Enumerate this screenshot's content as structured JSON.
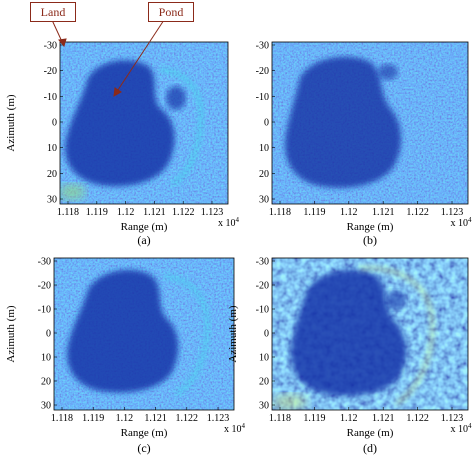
{
  "figure": {
    "panels": [
      {
        "id": "a",
        "caption": "(a)",
        "ylabel": "Azimuth (m)",
        "xlabel": "Range (m)",
        "y_ticks": [
          "-30",
          "-20",
          "-10",
          "0",
          "10",
          "20",
          "30"
        ],
        "x_ticks": [
          "1.118",
          "1.119",
          "1.12",
          "1.121",
          "1.122",
          "1.123"
        ],
        "x_exponent": "x 10",
        "x_exponent_power": "4",
        "texture": "fine-speckle"
      },
      {
        "id": "b",
        "caption": "(b)",
        "ylabel": "",
        "xlabel": "Range (m)",
        "y_ticks": [
          "-30",
          "-20",
          "-10",
          "0",
          "10",
          "20",
          "30"
        ],
        "x_ticks": [
          "1.118",
          "1.119",
          "1.12",
          "1.121",
          "1.122",
          "1.123"
        ],
        "x_exponent": "x 10",
        "x_exponent_power": "4",
        "texture": "fine-speckle"
      },
      {
        "id": "c",
        "caption": "(c)",
        "ylabel": "Azimuth (m)",
        "xlabel": "Range (m)",
        "y_ticks": [
          "-30",
          "-20",
          "-10",
          "0",
          "10",
          "20",
          "30"
        ],
        "x_ticks": [
          "1.118",
          "1.119",
          "1.12",
          "1.121",
          "1.122",
          "1.123"
        ],
        "x_exponent": "x 10",
        "x_exponent_power": "4",
        "texture": "fine-speckle"
      },
      {
        "id": "d",
        "caption": "(d)",
        "ylabel": "Azimuth (m)",
        "xlabel": "Range (m)",
        "y_ticks": [
          "-30",
          "-20",
          "-10",
          "0",
          "10",
          "20",
          "30"
        ],
        "x_ticks": [
          "1.118",
          "1.119",
          "1.12",
          "1.121",
          "1.122",
          "1.123"
        ],
        "x_exponent": "x 10",
        "x_exponent_power": "4",
        "texture": "coarse-blobs"
      }
    ],
    "callouts": {
      "land": "Land",
      "pond": "Pond"
    },
    "colors": {
      "pond": "#1030a0",
      "background": "#2a60e0",
      "highlight": "#30c0e0",
      "bright": "#e8e040",
      "callout": "#8b2a1a"
    }
  }
}
